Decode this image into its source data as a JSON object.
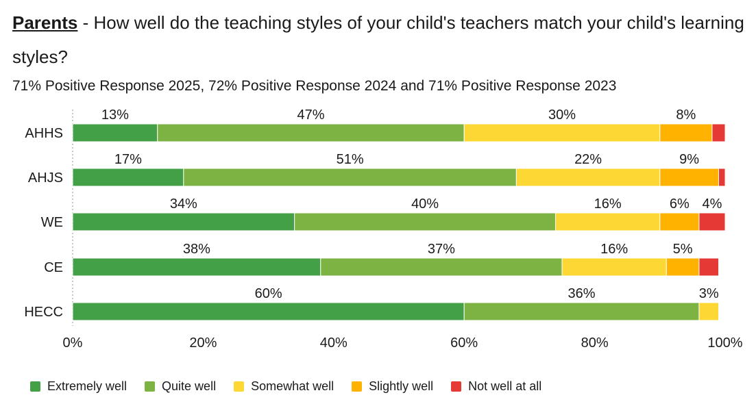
{
  "title": {
    "lead": "Parents",
    "text": " - How well do the teaching styles of your child's teachers match your child's learning styles?"
  },
  "subtitle": "71% Positive Response 2025, 72% Positive Response 2024 and 71% Positive Response 2023",
  "chart_data": {
    "type": "bar",
    "orientation": "horizontal",
    "stacked": true,
    "categories": [
      "AHHS",
      "AHJS",
      "WE",
      "CE",
      "HECC"
    ],
    "series": [
      {
        "name": "Extremely well",
        "color": "#43a047",
        "values": [
          13,
          17,
          34,
          38,
          60
        ],
        "labels": [
          "13%",
          "17%",
          "34%",
          "38%",
          "60%"
        ]
      },
      {
        "name": "Quite well",
        "color": "#7cb342",
        "values": [
          47,
          51,
          40,
          37,
          36
        ],
        "labels": [
          "47%",
          "51%",
          "40%",
          "37%",
          "36%"
        ]
      },
      {
        "name": "Somewhat well",
        "color": "#fdd835",
        "values": [
          30,
          22,
          16,
          16,
          3
        ],
        "labels": [
          "30%",
          "22%",
          "16%",
          "16%",
          "3%"
        ]
      },
      {
        "name": "Slightly well",
        "color": "#ffb300",
        "values": [
          8,
          9,
          6,
          5,
          0
        ],
        "labels": [
          "8%",
          "9%",
          "6%",
          "5%",
          ""
        ]
      },
      {
        "name": "Not well at all",
        "color": "#e53935",
        "values": [
          2,
          1,
          4,
          3,
          0
        ],
        "labels": [
          "",
          "",
          "4%",
          "",
          ""
        ]
      }
    ],
    "xlim": [
      0,
      100
    ],
    "x_ticks": [
      "0%",
      "20%",
      "40%",
      "60%",
      "80%",
      "100%"
    ],
    "grid": false,
    "legend_position": "bottom"
  }
}
